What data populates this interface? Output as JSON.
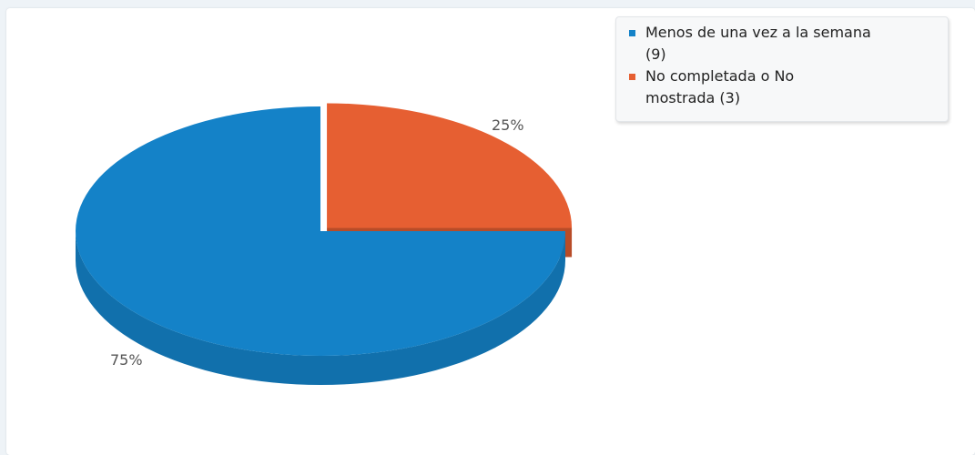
{
  "chart_data": {
    "type": "pie",
    "style": "3d",
    "slices": [
      {
        "label": "Menos de una vez a la semana",
        "count": 9,
        "percent_label": "75%",
        "color": "#1482c8",
        "exploded": false
      },
      {
        "label": "No completada o No mostrada",
        "count": 3,
        "percent_label": "25%",
        "color": "#e65f32",
        "exploded": true
      }
    ],
    "legend_placement": "top-right"
  },
  "legend": {
    "items": [
      {
        "line1": "Menos de una vez a la semana",
        "line2": "(9)",
        "color": "#1482c8"
      },
      {
        "line1": "No completada o No",
        "line2": "mostrada (3)",
        "color": "#e65f32"
      }
    ]
  }
}
